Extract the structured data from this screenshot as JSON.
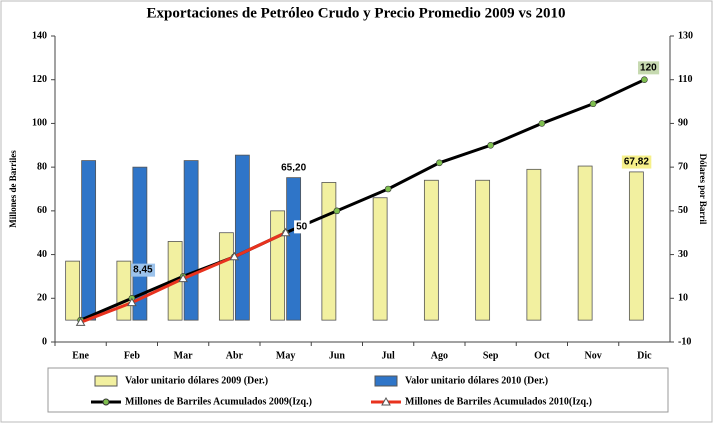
{
  "chart_data": {
    "type": "bar",
    "title": "Exportaciones de Petróleo Crudo y Precio Promedio 2009 vs 2010",
    "y_label": "Millones de Barriles",
    "y2_label": "Dólares por Barril",
    "categories": [
      "Ene",
      "Feb",
      "Mar",
      "Abr",
      "May",
      "Jun",
      "Jul",
      "Ago",
      "Sep",
      "Oct",
      "Nov",
      "Dic"
    ],
    "ylim": [
      0,
      140
    ],
    "yticks": [
      0,
      20,
      40,
      60,
      80,
      100,
      120,
      140
    ],
    "y2lim": [
      -10,
      130
    ],
    "y2ticks": [
      -10,
      10,
      30,
      50,
      70,
      90,
      110,
      130
    ],
    "grid": false,
    "legend": "bottom",
    "annotations": [
      "8,45"
    ],
    "series": [
      {
        "name": "Valor unitario dólares 2009 (Der.)",
        "type": "bar",
        "axis": "y2",
        "color": "#f2f0a0",
        "values": [
          27,
          27,
          36,
          40,
          50,
          63,
          56,
          64,
          64,
          69,
          70.5,
          67.82
        ],
        "value_labels": [
          null,
          null,
          null,
          null,
          null,
          null,
          null,
          null,
          null,
          null,
          null,
          "67,82"
        ]
      },
      {
        "name": "Valor unitario dólares 2010 (Der.)",
        "type": "bar",
        "axis": "y2",
        "color": "#2f75c8",
        "values": [
          73,
          70,
          73,
          75.5,
          65.2,
          null,
          null,
          null,
          null,
          null,
          null,
          null
        ],
        "value_labels": [
          null,
          null,
          null,
          null,
          "65,20",
          null,
          null,
          null,
          null,
          null,
          null,
          null
        ]
      },
      {
        "name": "Millones de Barriles Acumulados 2009(Izq.)",
        "type": "line",
        "marker": "circle",
        "color": "#000000",
        "values": [
          10,
          20,
          30,
          39,
          50,
          60,
          70,
          82,
          90,
          100,
          109,
          120
        ],
        "value_labels": [
          null,
          null,
          null,
          null,
          null,
          null,
          null,
          null,
          null,
          null,
          null,
          "120"
        ]
      },
      {
        "name": "Millones de Barriles Acumulados 2010(Izq.)",
        "type": "line",
        "marker": "triangle",
        "color": "#e8321e",
        "values": [
          9,
          18,
          29,
          39,
          50,
          null,
          null,
          null,
          null,
          null,
          null,
          null
        ],
        "value_labels": [
          null,
          null,
          null,
          null,
          "50",
          null,
          null,
          null,
          null,
          null,
          null,
          null
        ]
      }
    ]
  }
}
